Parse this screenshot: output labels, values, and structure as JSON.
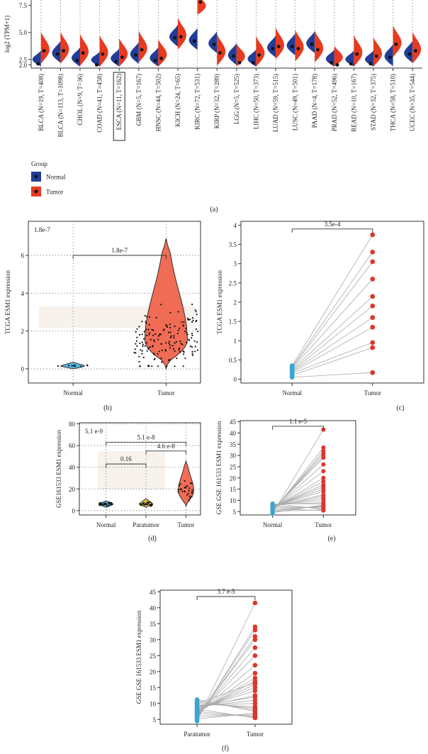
{
  "chart_data": [
    {
      "panel": "a",
      "type": "split-violin",
      "ylabel": "log2 (TPM+1)",
      "yticks": [
        2.0,
        2.5,
        5.0,
        7.5
      ],
      "ylim": [
        1.7,
        8.0
      ],
      "categories": [
        "BLCA (N=19, T=408)",
        "BLCA (N=113, T=1098)",
        "CHOL (N=9, T=36)",
        "COAD (N=41, T=458)",
        "ESCA (N=11, T=162)",
        "GBM (N=5, T=167)",
        "HNSC (N=44, T=502)",
        "KICH (N=24, T=65)",
        "KIRC (N=72, T=531)",
        "KIRP (N=32, T=289)",
        "LGG (N=5, T=525)",
        "LIHC (N=50, T=373)",
        "LUAD (N=59, T=515)",
        "LUSC (N=49, T=501)",
        "PAAD (N=4, T=178)",
        "PRAD (N=52, T=496)",
        "READ (N=10, T=167)",
        "STAD (N=32, T=375)",
        "THCA (N=58, T=510)",
        "UCEC (N=35, T=544)"
      ],
      "highlighted_category": "ESCA (N=11, T=162)",
      "series": [
        {
          "name": "Normal",
          "color": "#213d97",
          "medians": [
            2.1,
            3.0,
            2.4,
            2.0,
            2.3,
            2.9,
            2.4,
            4.5,
            4.2,
            3.9,
            2.8,
            2.2,
            3.5,
            3.7,
            3.9,
            2.2,
            2.1,
            2.1,
            2.7,
            3.0
          ]
        },
        {
          "name": "Tumor",
          "color": "#e83a1f",
          "medians": [
            3.3,
            3.3,
            3.1,
            3.0,
            2.7,
            3.4,
            2.6,
            4.6,
            7.8,
            3.1,
            2.2,
            2.9,
            3.7,
            3.5,
            3.4,
            2.0,
            3.0,
            2.8,
            3.9,
            3.3
          ]
        }
      ],
      "legend": {
        "title": "Group",
        "entries": [
          "Normal",
          "Tumor"
        ],
        "position": "bottom-left"
      },
      "caption": "(a)"
    },
    {
      "panel": "b",
      "type": "violin",
      "ylabel": "TCGA ESM1 expression",
      "categories": [
        "Normal",
        "Tumor"
      ],
      "yticks": [
        0,
        2,
        4,
        6
      ],
      "ylim": [
        -0.75,
        7.8
      ],
      "colors": [
        "#58b6de",
        "#f06c55"
      ],
      "medians": [
        0.15,
        1.5
      ],
      "ranges": [
        [
          0.0,
          0.35
        ],
        [
          0.0,
          6.9
        ]
      ],
      "n_points": [
        11,
        162
      ],
      "corner_label": "1.8e-7",
      "comparisons": [
        {
          "pair": [
            "Normal",
            "Tumor"
          ],
          "label": "1.8e-7",
          "y": 6.0
        }
      ],
      "caption": "(b)"
    },
    {
      "panel": "c",
      "type": "paired",
      "ylabel": "TCGA ESM1 expression",
      "categories": [
        "Normal",
        "Tumor"
      ],
      "yticks": [
        0.0,
        0.5,
        1.0,
        1.5,
        2.0,
        2.5,
        3.0,
        3.5,
        4.0
      ],
      "ylim": [
        -0.1,
        4.1
      ],
      "normal": [
        0.05,
        0.1,
        0.15,
        0.18,
        0.2,
        0.22,
        0.25,
        0.28,
        0.3,
        0.32,
        0.35
      ],
      "tumor": [
        0.17,
        0.82,
        0.95,
        1.35,
        1.6,
        1.9,
        2.15,
        2.6,
        3.05,
        3.3,
        3.75
      ],
      "colors": [
        "#3aa6d0",
        "#e0352b"
      ],
      "comparisons": [
        {
          "pair": [
            "Normal",
            "Tumor"
          ],
          "label": "3.5e-4",
          "y": 3.9
        }
      ],
      "caption": "(c)"
    },
    {
      "panel": "d",
      "type": "violin",
      "ylabel": "GSE161533 ESM1 expression",
      "categories": [
        "Normal",
        "Paratumor",
        "Tumor"
      ],
      "yticks": [
        0,
        20,
        40,
        60,
        80
      ],
      "ylim": [
        -4,
        81
      ],
      "colors": [
        "#4aa9cf",
        "#e9c23d",
        "#f06c55"
      ],
      "medians": [
        6,
        6,
        18
      ],
      "ranges": [
        [
          3,
          9
        ],
        [
          3,
          11
        ],
        [
          4,
          46
        ]
      ],
      "n_points": [
        28,
        28,
        28
      ],
      "corner_label": "5.1 e-9",
      "comparisons": [
        {
          "pair": [
            "Normal",
            "Tumor"
          ],
          "label": "5.1 e-8",
          "y": 63
        },
        {
          "pair": [
            "Paratumor",
            "Tumor"
          ],
          "label": "4.6 e-8",
          "y": 55
        },
        {
          "pair": [
            "Normal",
            "Paratumor"
          ],
          "label": "0.16",
          "y": 43
        }
      ],
      "caption": "(d)"
    },
    {
      "panel": "e",
      "type": "paired",
      "ylabel": "GSE GSE 161533 ESM1 expression",
      "categories": [
        "Normal",
        "Tumor"
      ],
      "yticks": [
        5,
        10,
        15,
        20,
        25,
        30,
        35,
        40,
        45
      ],
      "ylim": [
        3.5,
        45.5
      ],
      "normal": [
        4.2,
        4.8,
        5.0,
        5.2,
        5.5,
        5.7,
        5.9,
        6.1,
        6.3,
        6.5,
        6.7,
        7.0,
        7.2,
        7.4,
        7.6,
        7.8,
        8.0,
        8.2,
        8.4,
        4.5,
        5.3,
        6.0,
        6.8,
        7.5,
        8.6,
        5.1,
        6.2,
        7.1
      ],
      "tumor": [
        41.5,
        33.5,
        32.0,
        31.0,
        30.0,
        29.0,
        26.0,
        23.0,
        20.0,
        18.5,
        17.0,
        16.0,
        15.0,
        14.0,
        12.5,
        11.0,
        10.0,
        9.0,
        8.5,
        8.0,
        7.5,
        7.2,
        7.0,
        6.5,
        6.0,
        5.8,
        5.5,
        12.0
      ],
      "colors": [
        "#3aa6d0",
        "#e0352b"
      ],
      "comparisons": [
        {
          "pair": [
            "Normal",
            "Tumor"
          ],
          "label": "1.1 e-5",
          "y": 43
        }
      ],
      "caption": "(e)"
    },
    {
      "panel": "f",
      "type": "paired",
      "ylabel": "GSE GSE 161533 ESM1 expression",
      "categories": [
        "Paratumor",
        "Tumor"
      ],
      "yticks": [
        5,
        10,
        15,
        20,
        25,
        30,
        35,
        40,
        45
      ],
      "ylim": [
        3.5,
        45.5
      ],
      "normal": [
        4.5,
        5.0,
        5.3,
        5.6,
        5.9,
        6.1,
        6.4,
        6.6,
        6.9,
        7.1,
        7.4,
        7.7,
        8.0,
        8.3,
        8.6,
        9.0,
        9.4,
        9.8,
        10.3,
        10.8,
        11.2,
        5.2,
        6.0,
        6.8,
        7.5,
        8.2,
        9.1,
        10.0
      ],
      "tumor": [
        41.5,
        34.0,
        33.0,
        31.0,
        30.0,
        27.5,
        25.0,
        22.0,
        19.5,
        18.0,
        17.0,
        16.0,
        15.0,
        14.0,
        12.5,
        11.0,
        10.0,
        9.0,
        8.5,
        8.0,
        7.5,
        7.0,
        6.5,
        6.0,
        5.8,
        5.5,
        12.0,
        16.5
      ],
      "colors": [
        "#3aa6d0",
        "#e0352b"
      ],
      "comparisons": [
        {
          "pair": [
            "Paratumor",
            "Tumor"
          ],
          "label": "3.7 e-5",
          "y": 43.5
        }
      ],
      "caption": "(f)"
    }
  ]
}
